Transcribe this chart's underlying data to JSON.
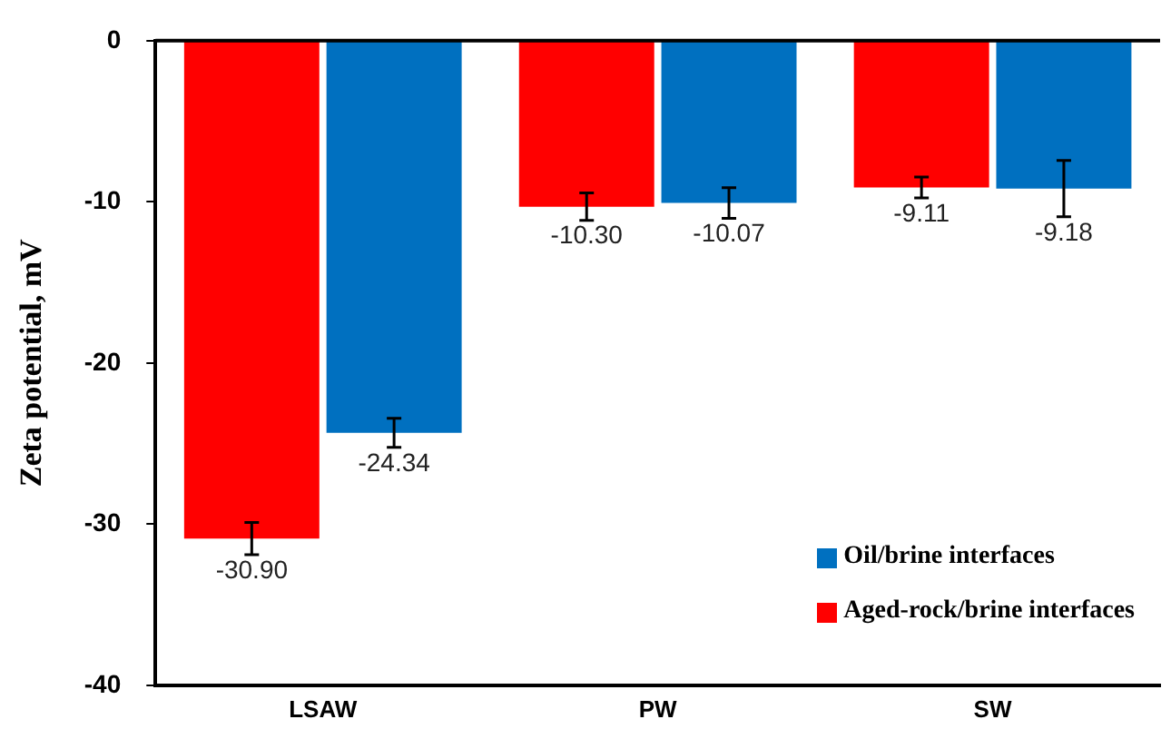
{
  "chart_data": {
    "type": "bar",
    "ylabel": "Zeta potential, mV",
    "categories": [
      "LSAW",
      "PW",
      "SW"
    ],
    "series": [
      {
        "name": "Aged-rock/brine interfaces",
        "color": "#ff0000",
        "values": [
          -30.9,
          -10.3,
          -9.11
        ],
        "errors": [
          1.0,
          0.85,
          0.65
        ],
        "value_labels": [
          "-30.90",
          "-10.30",
          "-9.11"
        ]
      },
      {
        "name": "Oil/brine interfaces",
        "color": "#0070c0",
        "values": [
          -24.34,
          -10.07,
          -9.18
        ],
        "errors": [
          0.9,
          0.95,
          1.75
        ],
        "value_labels": [
          "-24.34",
          "-10.07",
          "-9.18"
        ]
      }
    ],
    "ylim": [
      -40,
      0
    ],
    "yticks": [
      -40,
      -30,
      -20,
      -10,
      0
    ],
    "grid": false,
    "legend": "bottom right"
  }
}
